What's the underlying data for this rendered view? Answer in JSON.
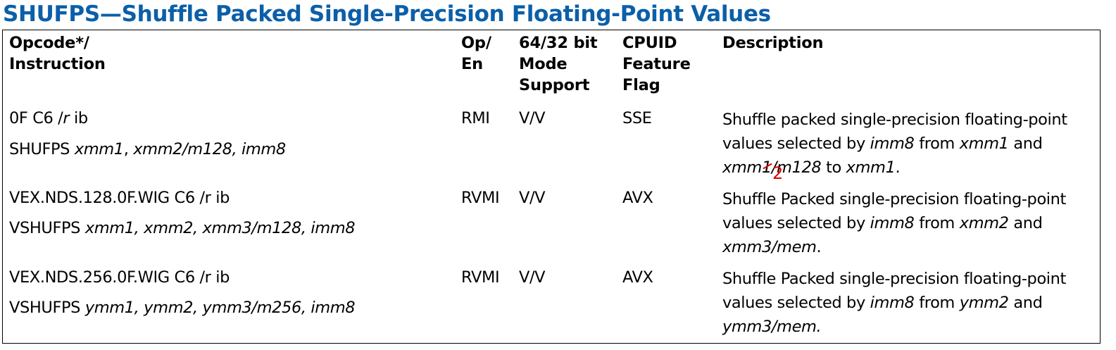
{
  "title": "SHUFPS—Shuffle Packed Single-Precision Floating-Point Values",
  "headers": {
    "opcode_line1": "Opcode*/",
    "opcode_line2": "Instruction",
    "open_line1": "Op/",
    "open_line2": "En",
    "mode_line1": "64/32 bit",
    "mode_line2": "Mode",
    "mode_line3": "Support",
    "cpuid_line1": "CPUID",
    "cpuid_line2": "Feature",
    "cpuid_line3": "Flag",
    "description": "Description"
  },
  "rows": [
    {
      "opcode_a": "0F C6 /",
      "opcode_a_italic": "r",
      "opcode_a_tail": " ib",
      "mnemonic": "SHUFPS ",
      "operands_1": "xmm1",
      "operands_sep": ", ",
      "operands_2": "xmm2/m128, imm8",
      "op_en": "RMI",
      "mode": "V/V",
      "cpuid": "SSE",
      "desc_1": "Shuffle packed single-precision floating-point",
      "desc_2a": "values selected by ",
      "desc_2b": "imm8",
      "desc_2c": " from ",
      "desc_2d": "xmm1",
      "desc_2e": " and",
      "desc_3a": "xmm",
      "desc_3b": "1",
      "desc_3c": "/m128",
      "desc_3d": " to ",
      "desc_3e": "xmm1",
      "desc_3f": ".",
      "correction": "2"
    },
    {
      "opcode_a": "VEX.NDS.128.0F.WIG C6 /r ib",
      "mnemonic": "VSHUFPS ",
      "operands": "xmm1, xmm2, xmm3/m128, imm8",
      "op_en": "RVMI",
      "mode": "V/V",
      "cpuid": "AVX",
      "desc_1": "Shuffle Packed single-precision floating-point",
      "desc_2a": "values selected by ",
      "desc_2b": "imm8",
      "desc_2c": " from ",
      "desc_2d": "xmm2",
      "desc_2e": " and",
      "desc_3": "xmm3/mem",
      "desc_3f": "."
    },
    {
      "opcode_a": "VEX.NDS.256.0F.WIG C6 /r ib",
      "mnemonic": "VSHUFPS ",
      "operands": "ymm1, ymm2, ymm3/m256, imm8",
      "op_en": "RVMI",
      "mode": "V/V",
      "cpuid": "AVX",
      "desc_1": "Shuffle Packed single-precision floating-point",
      "desc_2a": "values selected by ",
      "desc_2b": "imm8",
      "desc_2c": " from ",
      "desc_2d": "ymm2",
      "desc_2e": " and",
      "desc_3": "ymm3/mem."
    }
  ]
}
